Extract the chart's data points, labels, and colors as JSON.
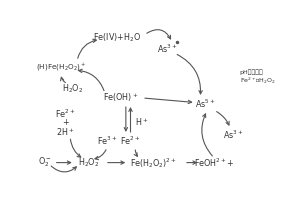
{
  "arrow_color": "#555555",
  "text_color": "#333333",
  "figsize": [
    3.0,
    2.0
  ],
  "dpi": 100,
  "labels": {
    "FeIV": [
      0.34,
      0.91,
      "Fe(IV)+H$_2$O"
    ],
    "As3_top": [
      0.56,
      0.84,
      "As$^{3+}$"
    ],
    "OHFe": [
      0.1,
      0.72,
      "(H)Fe(H$_2$O$_2$)$^+$"
    ],
    "H2O2_L": [
      0.15,
      0.58,
      "H$_2$O$_2$"
    ],
    "FeOH": [
      0.36,
      0.52,
      "Fe(OH)$^+$"
    ],
    "Fe2_top": [
      0.12,
      0.42,
      "Fe$^{2+}$"
    ],
    "plus": [
      0.12,
      0.36,
      "+"
    ],
    "H2plus": [
      0.12,
      0.3,
      "2H$^+$"
    ],
    "Fe3": [
      0.3,
      0.24,
      "Fe$^{3+}$"
    ],
    "Fe2_bot": [
      0.4,
      0.24,
      "Fe$^{2+}$"
    ],
    "Hplus": [
      0.45,
      0.36,
      "H$^+$"
    ],
    "O2m": [
      0.03,
      0.1,
      "O$_2^-$"
    ],
    "H2O2_B": [
      0.22,
      0.1,
      "H$_2$O$_2$"
    ],
    "FeH2O2": [
      0.5,
      0.1,
      "Fe(H$_2$O$_2$)$^{2+}$"
    ],
    "FeOH2": [
      0.76,
      0.1,
      "FeOH$^{2+}$+"
    ],
    "As5": [
      0.72,
      0.48,
      "As$^{5+}$"
    ],
    "As3_mid": [
      0.84,
      0.28,
      "As$^{3+}$"
    ],
    "pH_note": [
      0.87,
      0.65,
      "pH由酸性变\nFe$^{2+}$与H$_2$O$_2$"
    ]
  }
}
